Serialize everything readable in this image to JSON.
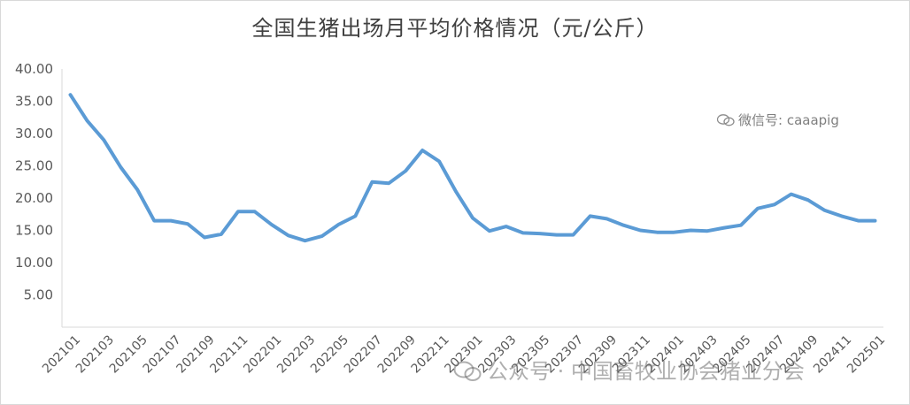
{
  "chart_data": {
    "type": "line",
    "title": "全国生猪出场月平均价格情况（元/公斤）",
    "xlabel": "",
    "ylabel": "",
    "ylim": [
      0,
      40
    ],
    "yticks": [
      "40.00",
      "35.00",
      "30.00",
      "25.00",
      "20.00",
      "15.00",
      "10.00",
      "5.00"
    ],
    "ytick_values": [
      40,
      35,
      30,
      25,
      20,
      15,
      10,
      5
    ],
    "grid": false,
    "legend": "none",
    "line_color": "#5b9bd5",
    "x_tick_labels": [
      "202101",
      "202103",
      "202105",
      "202107",
      "202109",
      "202111",
      "202201",
      "202203",
      "202205",
      "202207",
      "202209",
      "202211",
      "202301",
      "202303",
      "202305",
      "202307",
      "202309",
      "202311",
      "202401",
      "202403",
      "202405",
      "202407",
      "202409",
      "202411",
      "202501"
    ],
    "x": [
      "202101",
      "202102",
      "202103",
      "202104",
      "202105",
      "202106",
      "202107",
      "202108",
      "202109",
      "202110",
      "202111",
      "202112",
      "202201",
      "202202",
      "202203",
      "202204",
      "202205",
      "202206",
      "202207",
      "202208",
      "202209",
      "202210",
      "202211",
      "202212",
      "202301",
      "202302",
      "202303",
      "202304",
      "202305",
      "202306",
      "202307",
      "202308",
      "202309",
      "202310",
      "202311",
      "202312",
      "202401",
      "202402",
      "202403",
      "202404",
      "202405",
      "202406",
      "202407",
      "202408",
      "202409",
      "202410",
      "202411",
      "202412",
      "202501"
    ],
    "series": [
      {
        "values": [
          36.0,
          32.0,
          29.0,
          24.8,
          21.3,
          16.5,
          16.5,
          16.0,
          13.9,
          14.4,
          17.9,
          17.9,
          15.9,
          14.2,
          13.4,
          14.1,
          15.9,
          17.2,
          22.5,
          22.3,
          24.2,
          27.4,
          25.7,
          21.0,
          16.9,
          14.9,
          15.6,
          14.6,
          14.5,
          14.3,
          14.3,
          17.2,
          16.8,
          15.8,
          15.0,
          14.7,
          14.7,
          15.0,
          14.9,
          15.4,
          15.8,
          18.4,
          19.0,
          20.6,
          19.7,
          18.1,
          17.2,
          16.5,
          16.5
        ]
      }
    ]
  },
  "watermarks": {
    "wechat_id": "微信号: caaapig",
    "official_account": "公众号 · 中国畜牧业协会猪业分会"
  }
}
